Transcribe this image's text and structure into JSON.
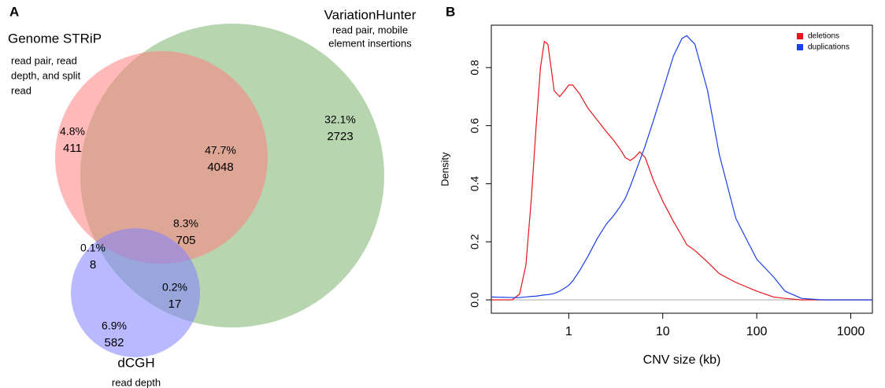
{
  "chart_data": [
    {
      "type": "venn",
      "panel_label": "A",
      "sets": [
        {
          "name": "Genome STRiP",
          "description_lines": [
            "read pair, read",
            "depth, and split",
            "read"
          ],
          "color": "#ff7f7f"
        },
        {
          "name": "VariationHunter",
          "description_lines": [
            "read pair, mobile",
            "element insertions"
          ],
          "color": "#7cb26e"
        },
        {
          "name": "dCGH",
          "description_lines": [
            "read depth"
          ],
          "color": "#7f7fff"
        }
      ],
      "values": [
        411,
        4048,
        2723,
        705,
        8,
        17,
        582
      ],
      "value_shares": [
        4.8,
        47.7,
        32.1,
        8.3,
        0.1,
        0.2,
        6.9
      ],
      "value_share_labels": [
        "4.8%",
        "47.7%",
        "32.1%",
        "8.3%",
        "0.1%",
        "0.2%",
        "6.9%"
      ]
    },
    {
      "type": "line",
      "panel_label": "B",
      "xlabel": "CNV size (kb)",
      "ylabel": "Density",
      "xlog": true,
      "x": [
        0.15,
        0.25,
        0.3,
        0.35,
        0.4,
        0.45,
        0.5,
        0.55,
        0.6,
        0.7,
        0.8,
        0.9,
        1,
        1.1,
        1.3,
        1.6,
        2,
        2.5,
        3,
        3.5,
        4,
        4.5,
        5,
        5.7,
        6.5,
        8,
        10,
        13,
        16,
        18,
        22,
        30,
        40,
        60,
        100,
        150,
        200,
        300,
        500,
        1000,
        1700
      ],
      "series": [
        {
          "name": "deletions",
          "color": "#e8161b",
          "values": [
            0,
            0,
            0.02,
            0.12,
            0.35,
            0.6,
            0.8,
            0.89,
            0.88,
            0.72,
            0.7,
            0.72,
            0.74,
            0.74,
            0.71,
            0.66,
            0.62,
            0.58,
            0.55,
            0.52,
            0.49,
            0.48,
            0.49,
            0.51,
            0.49,
            0.41,
            0.34,
            0.27,
            0.22,
            0.19,
            0.17,
            0.13,
            0.09,
            0.06,
            0.03,
            0.01,
            0.005,
            0,
            0,
            0,
            0
          ]
        },
        {
          "name": "duplications",
          "color": "#1940e8",
          "values": [
            0.01,
            0.008,
            0.008,
            0.01,
            0.012,
            0.013,
            0.015,
            0.017,
            0.018,
            0.022,
            0.03,
            0.04,
            0.05,
            0.065,
            0.1,
            0.15,
            0.21,
            0.26,
            0.29,
            0.32,
            0.35,
            0.39,
            0.43,
            0.48,
            0.53,
            0.62,
            0.72,
            0.84,
            0.9,
            0.91,
            0.88,
            0.72,
            0.5,
            0.28,
            0.14,
            0.08,
            0.03,
            0.005,
            0,
            0,
            0
          ]
        }
      ],
      "xlim": [
        0.15,
        1700
      ],
      "xticks": [
        1,
        10,
        100,
        1000
      ],
      "ylim": [
        -0.046,
        0.946
      ],
      "yticks": [
        {
          "value": 0,
          "label": "0.0"
        },
        0.2,
        0.4,
        0.6,
        0.8
      ],
      "zero_line": true,
      "legend": "top-right"
    }
  ]
}
